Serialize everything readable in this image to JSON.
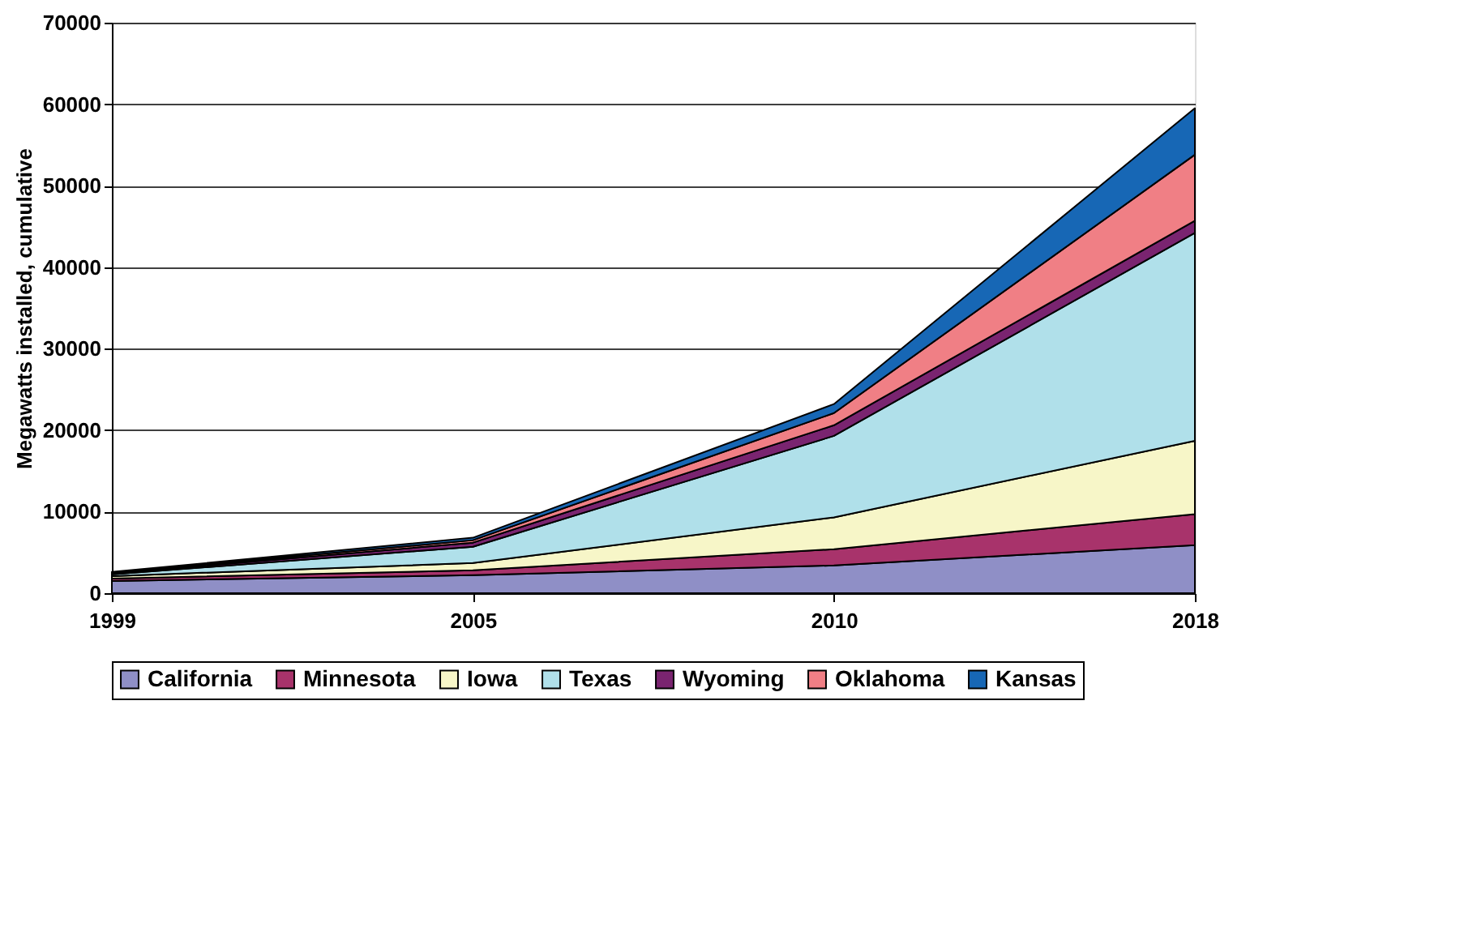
{
  "chart_data": {
    "type": "area",
    "stacked": true,
    "ylabel": "Megawatts installed, cumulative",
    "categories": [
      "1999",
      "2005",
      "2010",
      "2018"
    ],
    "ylim": [
      0,
      70000
    ],
    "yticks": [
      0,
      10000,
      20000,
      30000,
      40000,
      50000,
      60000,
      70000
    ],
    "grid": "y",
    "legend": "bottom",
    "series": [
      {
        "name": "California",
        "color": "#8f8fc6",
        "values": [
          1500,
          2200,
          3400,
          5900
        ]
      },
      {
        "name": "Minnesota",
        "color": "#a8336b",
        "values": [
          300,
          600,
          2000,
          3800
        ]
      },
      {
        "name": "Iowa",
        "color": "#f7f6c8",
        "values": [
          300,
          900,
          3900,
          9000
        ]
      },
      {
        "name": "Texas",
        "color": "#b0e0ea",
        "values": [
          200,
          2000,
          10000,
          25500
        ]
      },
      {
        "name": "Wyoming",
        "color": "#7a2470",
        "values": [
          100,
          500,
          1300,
          1500
        ]
      },
      {
        "name": "Oklahoma",
        "color": "#f07f85",
        "values": [
          100,
          300,
          1500,
          8100
        ]
      },
      {
        "name": "Kansas",
        "color": "#1767b5",
        "values": [
          100,
          300,
          1100,
          5700
        ]
      }
    ]
  }
}
